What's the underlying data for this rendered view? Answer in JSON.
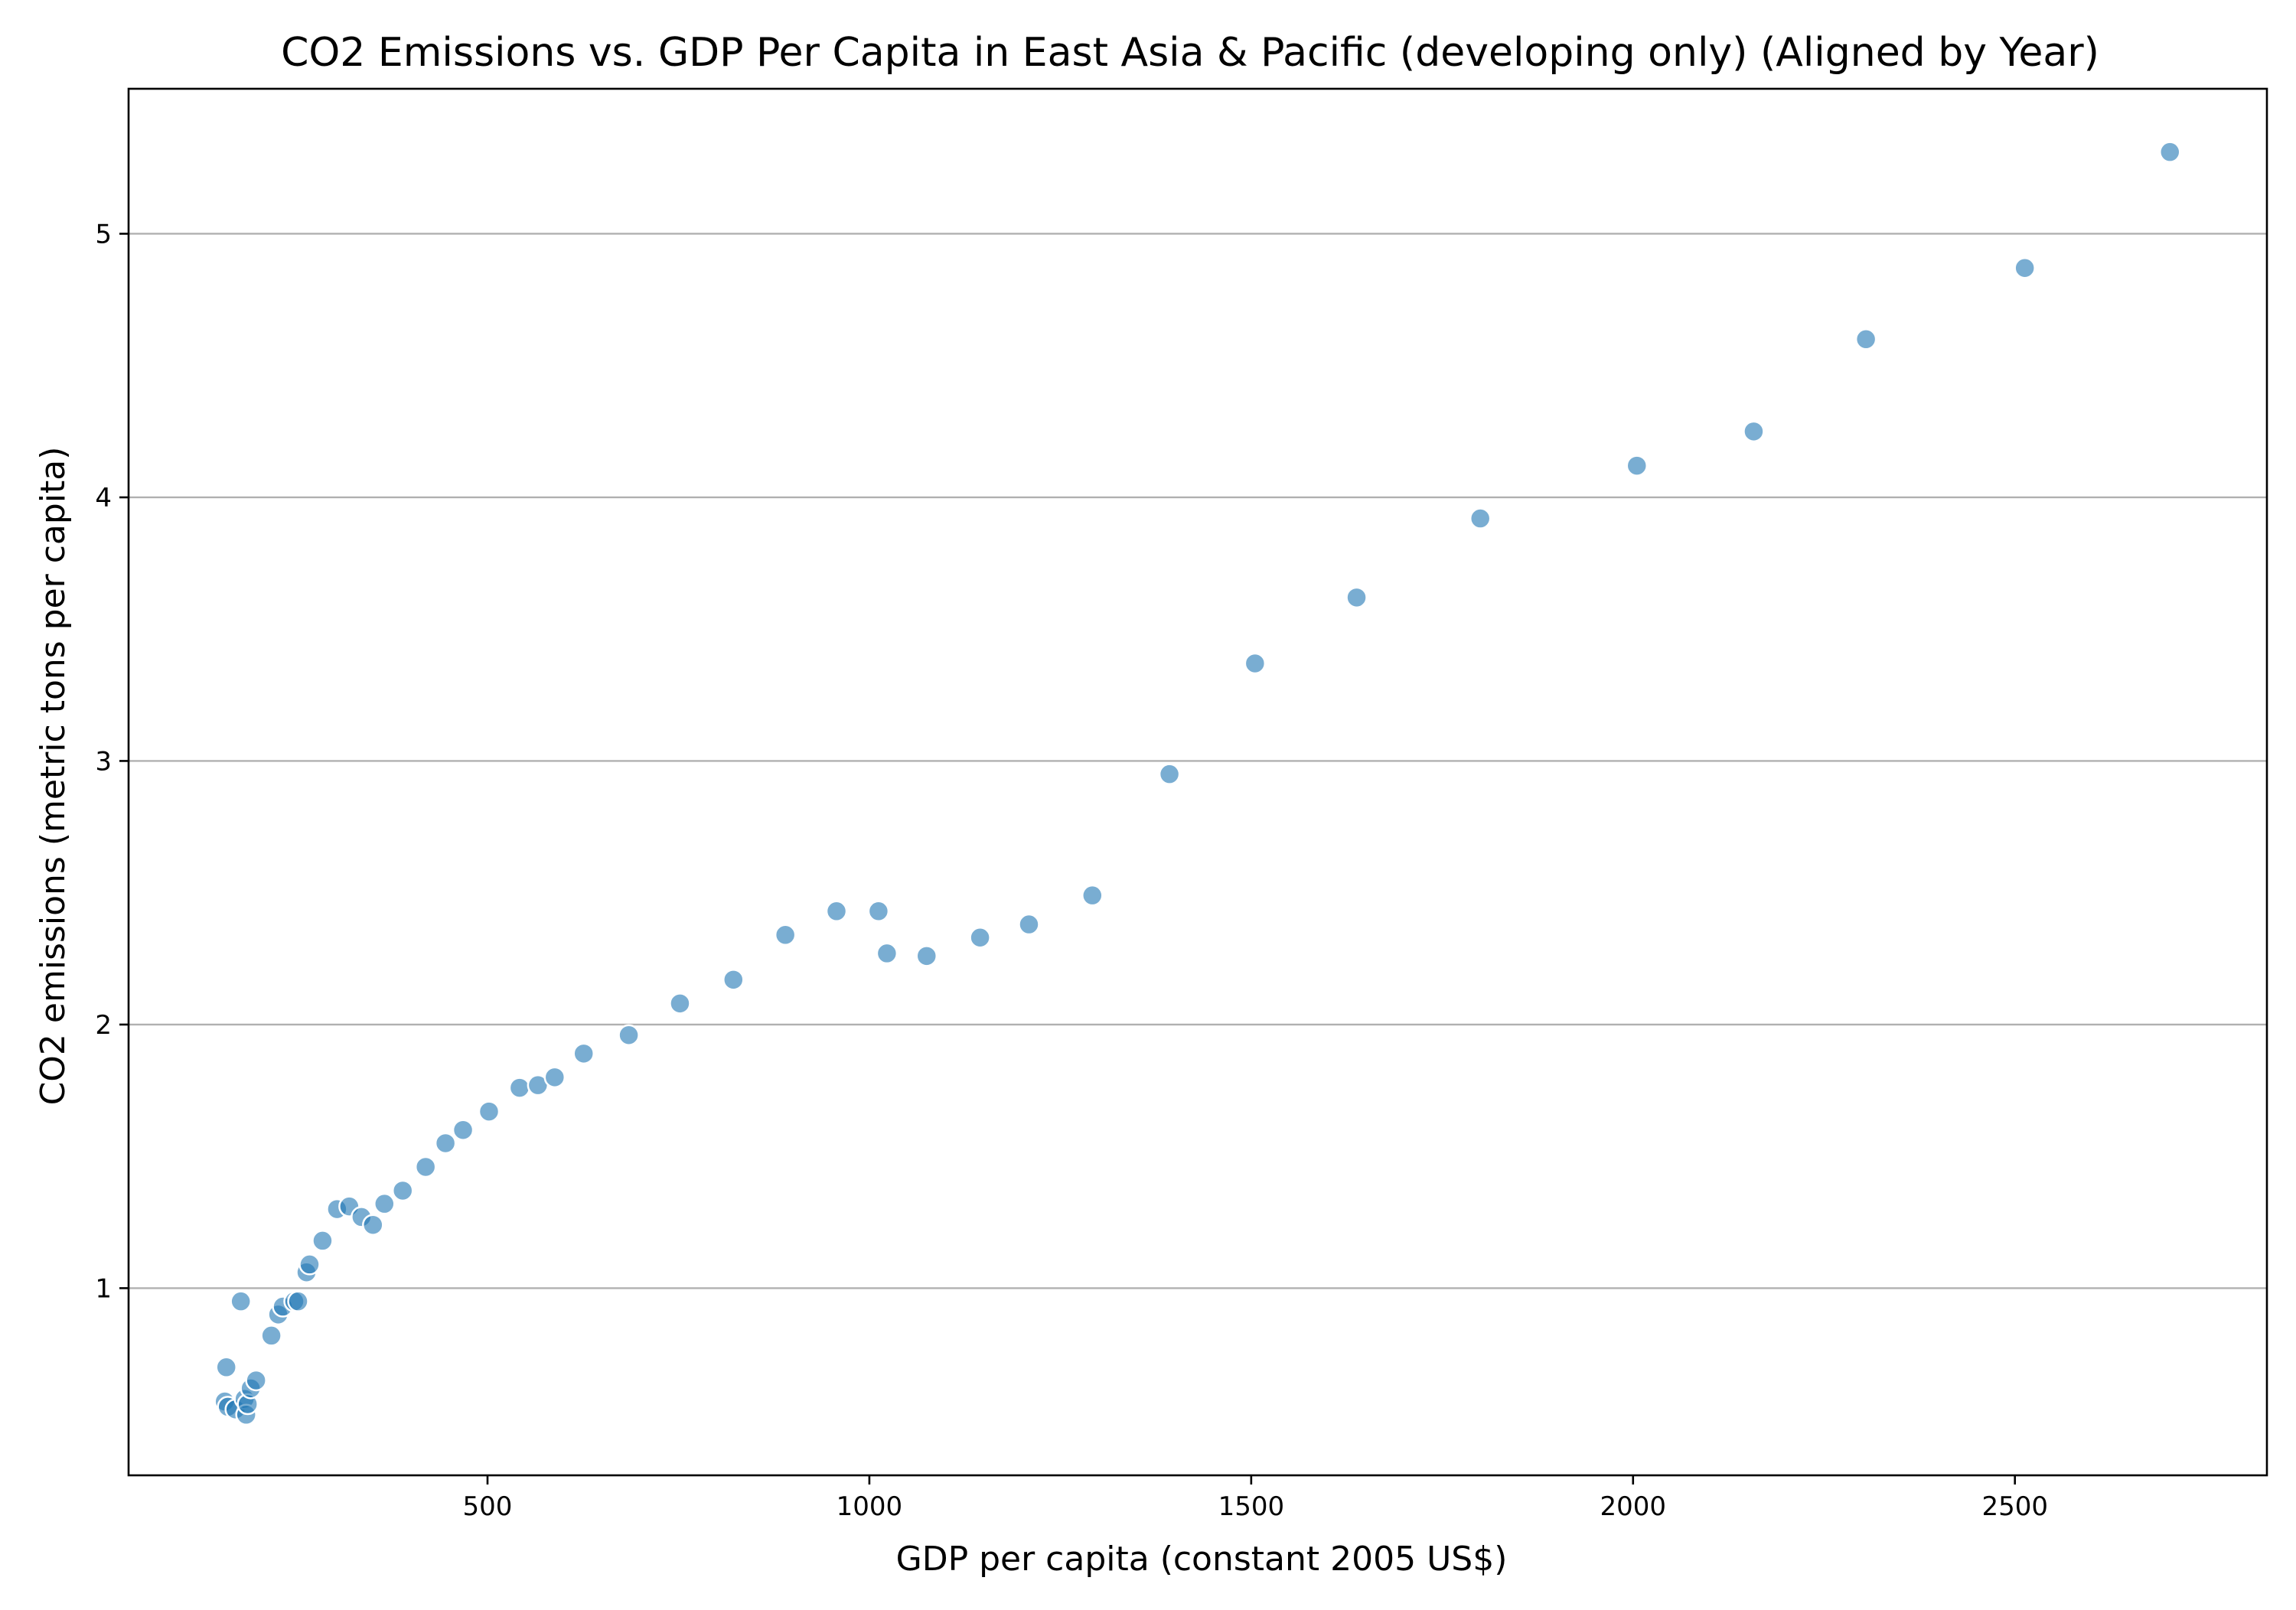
{
  "chart_data": {
    "type": "scatter",
    "title": "CO2 Emissions vs. GDP Per Capita in East Asia & Pacific (developing only) (Aligned by Year)",
    "xlabel": "GDP per capita (constant 2005 US$)",
    "ylabel": "CO2 emissions (metric tons per capita)",
    "xlim": [
      30,
      2830
    ],
    "ylim": [
      0.29,
      5.55
    ],
    "xticks": [
      500,
      1000,
      1500,
      2000,
      2500
    ],
    "xtick_labels": [
      "500",
      "1000",
      "1500",
      "2000",
      "2500"
    ],
    "yticks": [
      1,
      2,
      3,
      4,
      5
    ],
    "ytick_labels": [
      "1",
      "2",
      "3",
      "4",
      "5"
    ],
    "grid": "horizontal",
    "marker_color": "#1f77b4",
    "marker_opacity": 0.6,
    "points": [
      {
        "x": 156,
        "y": 0.57
      },
      {
        "x": 160,
        "y": 0.55
      },
      {
        "x": 158,
        "y": 0.7
      },
      {
        "x": 170,
        "y": 0.54
      },
      {
        "x": 177,
        "y": 0.95
      },
      {
        "x": 182,
        "y": 0.58
      },
      {
        "x": 184,
        "y": 0.52
      },
      {
        "x": 186,
        "y": 0.56
      },
      {
        "x": 190,
        "y": 0.62
      },
      {
        "x": 197,
        "y": 0.65
      },
      {
        "x": 217,
        "y": 0.82
      },
      {
        "x": 226,
        "y": 0.9
      },
      {
        "x": 232,
        "y": 0.93
      },
      {
        "x": 247,
        "y": 0.95
      },
      {
        "x": 252,
        "y": 0.95
      },
      {
        "x": 263,
        "y": 1.06
      },
      {
        "x": 267,
        "y": 1.09
      },
      {
        "x": 284,
        "y": 1.18
      },
      {
        "x": 303,
        "y": 1.3
      },
      {
        "x": 319,
        "y": 1.31
      },
      {
        "x": 335,
        "y": 1.27
      },
      {
        "x": 350,
        "y": 1.24
      },
      {
        "x": 365,
        "y": 1.32
      },
      {
        "x": 389,
        "y": 1.37
      },
      {
        "x": 419,
        "y": 1.46
      },
      {
        "x": 445,
        "y": 1.55
      },
      {
        "x": 468,
        "y": 1.6
      },
      {
        "x": 502,
        "y": 1.67
      },
      {
        "x": 542,
        "y": 1.76
      },
      {
        "x": 566,
        "y": 1.77
      },
      {
        "x": 588,
        "y": 1.8
      },
      {
        "x": 626,
        "y": 1.89
      },
      {
        "x": 685,
        "y": 1.96
      },
      {
        "x": 752,
        "y": 2.08
      },
      {
        "x": 822,
        "y": 2.17
      },
      {
        "x": 890,
        "y": 2.34
      },
      {
        "x": 957,
        "y": 2.43
      },
      {
        "x": 1012,
        "y": 2.43
      },
      {
        "x": 1023,
        "y": 2.27
      },
      {
        "x": 1075,
        "y": 2.26
      },
      {
        "x": 1145,
        "y": 2.33
      },
      {
        "x": 1209,
        "y": 2.38
      },
      {
        "x": 1292,
        "y": 2.49
      },
      {
        "x": 1393,
        "y": 2.95
      },
      {
        "x": 1505,
        "y": 3.37
      },
      {
        "x": 1638,
        "y": 3.62
      },
      {
        "x": 1800,
        "y": 3.92
      },
      {
        "x": 2005,
        "y": 4.12
      },
      {
        "x": 2158,
        "y": 4.25
      },
      {
        "x": 2305,
        "y": 4.6
      },
      {
        "x": 2513,
        "y": 4.87
      },
      {
        "x": 2703,
        "y": 5.31
      }
    ]
  }
}
